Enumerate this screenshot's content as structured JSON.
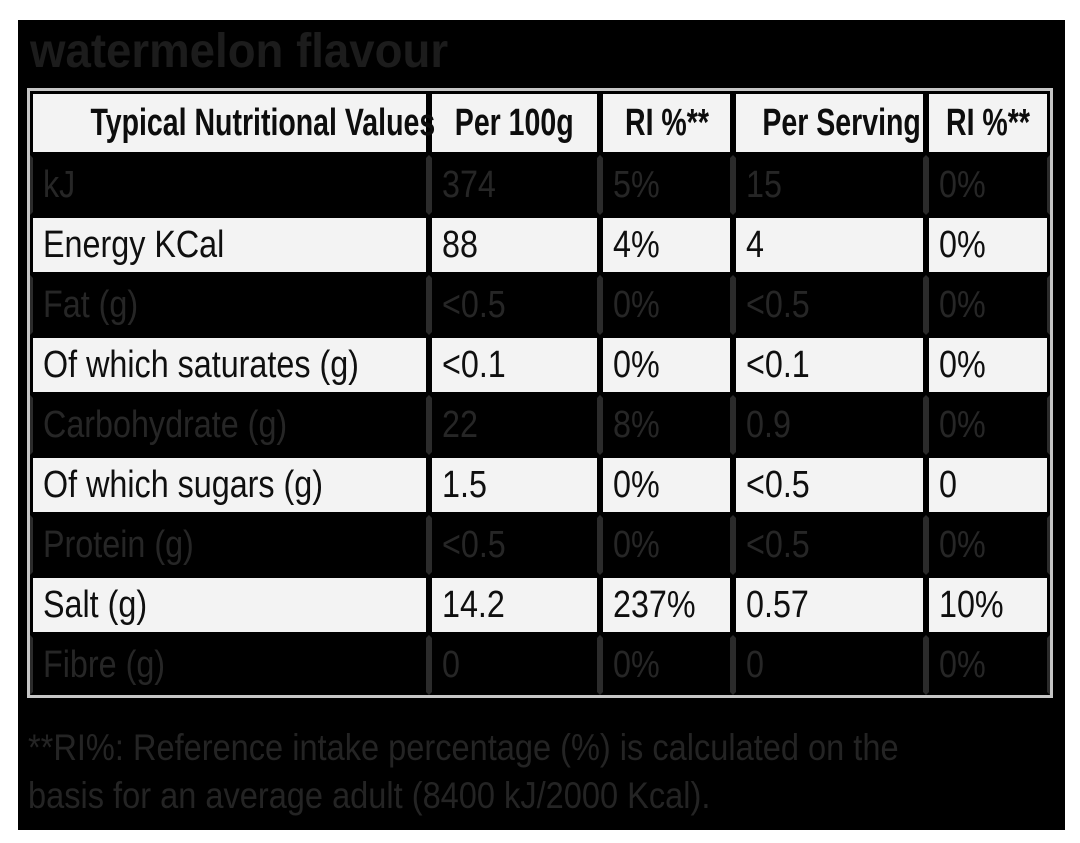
{
  "title": "watermelon flavour",
  "table": {
    "headers": [
      "Typical Nutritional Values",
      "Per 100g",
      "RI %**",
      "Per Serving",
      "RI %**"
    ],
    "rows": [
      {
        "label": "kJ",
        "per100g": "374",
        "ri_100g": "5%",
        "per_serving": "15",
        "ri_serving": "0%",
        "shade": "dark"
      },
      {
        "label": "Energy KCal",
        "per100g": "88",
        "ri_100g": "4%",
        "per_serving": "4",
        "ri_serving": "0%",
        "shade": "light"
      },
      {
        "label": "Fat (g)",
        "per100g": "<0.5",
        "ri_100g": "0%",
        "per_serving": "<0.5",
        "ri_serving": "0%",
        "shade": "dark"
      },
      {
        "label": "Of which saturates (g)",
        "per100g": "<0.1",
        "ri_100g": "0%",
        "per_serving": "<0.1",
        "ri_serving": "0%",
        "shade": "light"
      },
      {
        "label": "Carbohydrate (g)",
        "per100g": "22",
        "ri_100g": "8%",
        "per_serving": "0.9",
        "ri_serving": "0%",
        "shade": "dark"
      },
      {
        "label": "Of which sugars (g)",
        "per100g": "1.5",
        "ri_100g": "0%",
        "per_serving": "<0.5",
        "ri_serving": "0",
        "shade": "light"
      },
      {
        "label": "Protein (g)",
        "per100g": "<0.5",
        "ri_100g": "0%",
        "per_serving": "<0.5",
        "ri_serving": "0%",
        "shade": "dark"
      },
      {
        "label": "Salt (g)",
        "per100g": "14.2",
        "ri_100g": "237%",
        "per_serving": "0.57",
        "ri_serving": "10%",
        "shade": "light"
      },
      {
        "label": "Fibre (g)",
        "per100g": "0",
        "ri_100g": "0%",
        "per_serving": "0",
        "ri_serving": "0%",
        "shade": "dark"
      }
    ]
  },
  "footnote": {
    "line1": "**RI%: Reference intake percentage (%) is calculated on the",
    "line2": "basis for an average adult (8400 kJ/2000 Kcal)."
  },
  "colors": {
    "page_bg": "#ffffff",
    "panel_bg": "#000000",
    "light_row_bg": "#f3f3f3",
    "dark_row_bg": "#000000",
    "dark_row_text": "#262626",
    "light_row_text": "#0f0f0f",
    "title_text": "#1c1c1c",
    "table_border": "#c6c6c6"
  }
}
